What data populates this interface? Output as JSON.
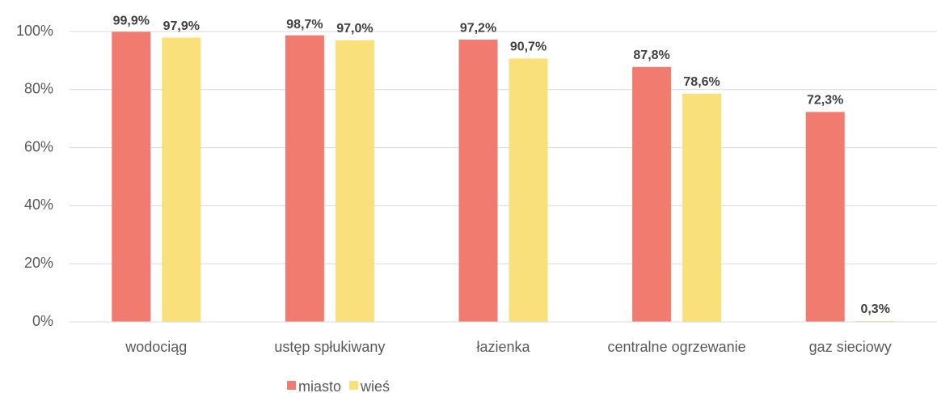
{
  "chart_data": {
    "type": "bar",
    "categories": [
      "wodociąg",
      "ustęp spłukiwany",
      "łazienka",
      "centralne ogrzewanie",
      "gaz sieciowy"
    ],
    "series": [
      {
        "name": "miasto",
        "color": "#f07b6e",
        "values": [
          99.9,
          98.7,
          97.2,
          87.8,
          72.3
        ],
        "value_labels": [
          "99,9%",
          "98,7%",
          "97,2%",
          "87,8%",
          "72,3%"
        ]
      },
      {
        "name": "wieś",
        "color": "#f9e07a",
        "values": [
          97.9,
          97.0,
          90.7,
          78.6,
          0.3
        ],
        "value_labels": [
          "97,9%",
          "97,0%",
          "90,7%",
          "78,6%",
          "0,3%"
        ]
      }
    ],
    "ylim": [
      0,
      100
    ],
    "yticks": [
      {
        "value": 0,
        "label": "0%"
      },
      {
        "value": 20,
        "label": "20%"
      },
      {
        "value": 40,
        "label": "40%"
      },
      {
        "value": 60,
        "label": "60%"
      },
      {
        "value": 80,
        "label": "80%"
      },
      {
        "value": 100,
        "label": "100%"
      }
    ],
    "grid": true,
    "legend": "bottom"
  }
}
